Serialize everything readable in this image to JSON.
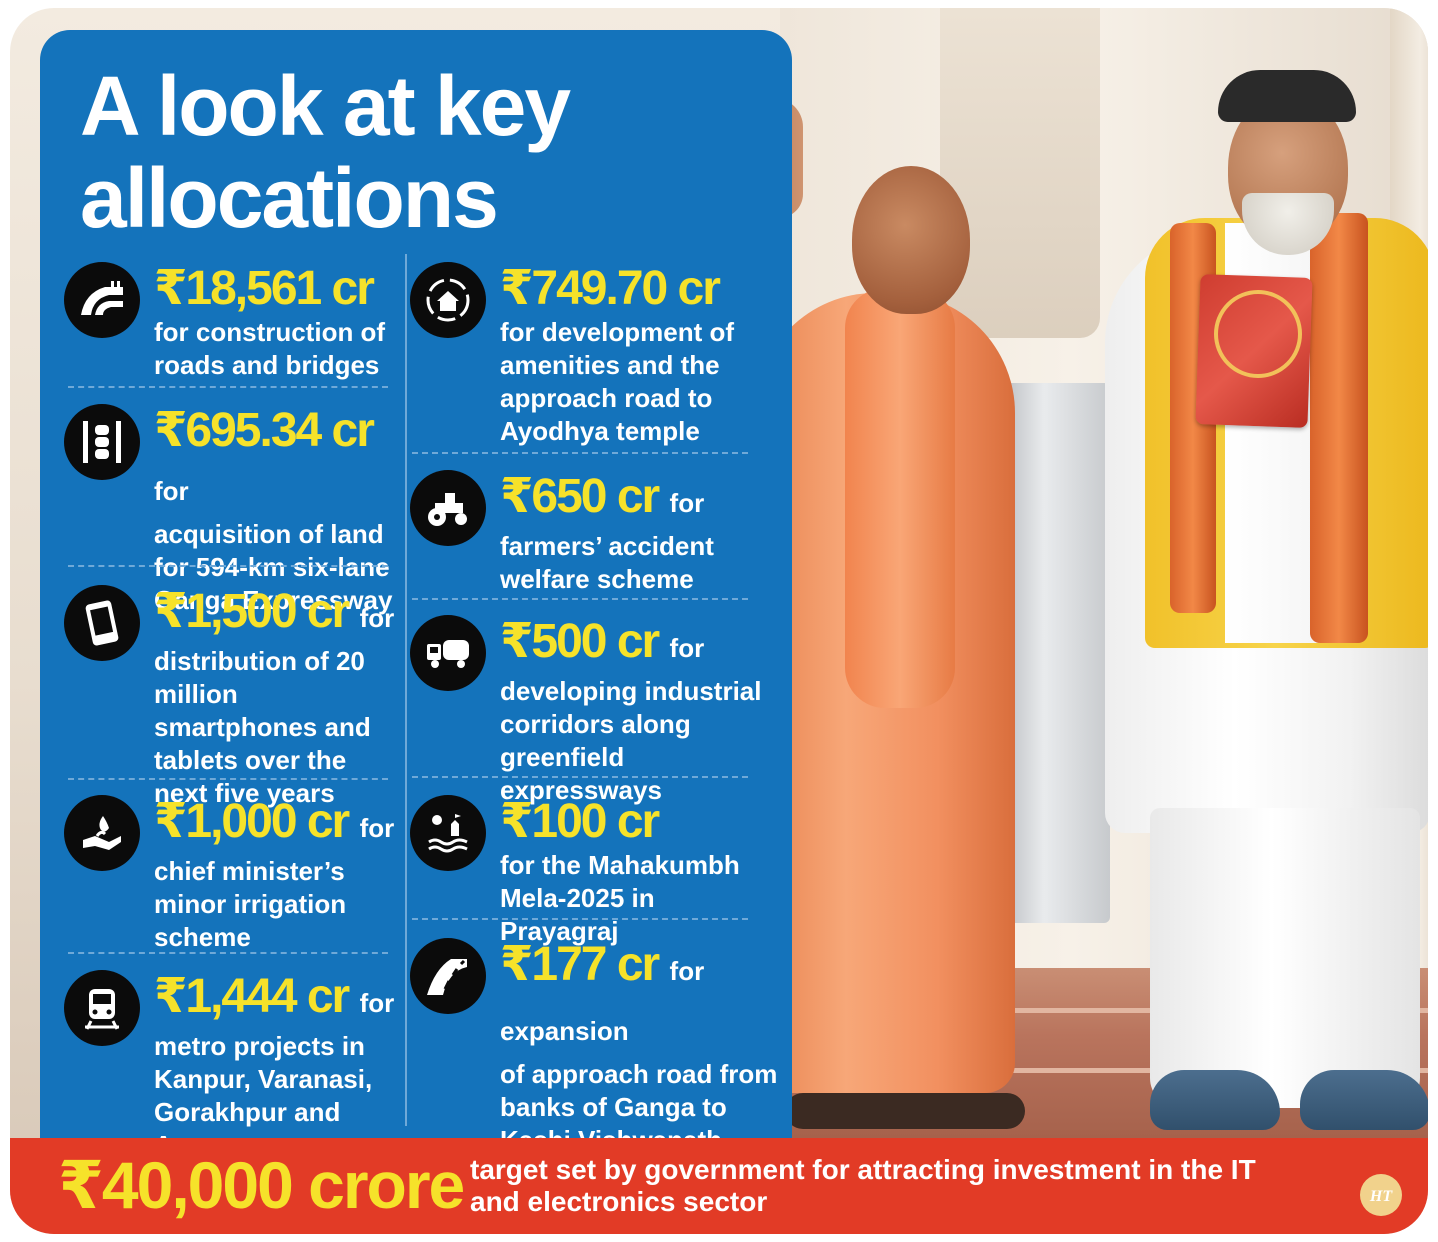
{
  "title": {
    "line1": "A look at key",
    "line2": "allocations"
  },
  "items_left": [
    {
      "amount": "₹18,561 cr",
      "inline": "",
      "desc": "for construction of roads and bridges",
      "icon": "road-bridge-icon"
    },
    {
      "amount": "₹695.34 cr",
      "inline": "for",
      "desc": "acquisition of land for 594-km six-lane Ganga Expressway",
      "icon": "expressway-icon"
    },
    {
      "amount": "₹1,500 cr",
      "inline": "for",
      "desc": "distribution of 20 million smartphones and tablets over the next five years",
      "icon": "smartphone-icon"
    },
    {
      "amount": "₹1,000 cr",
      "inline": "for",
      "desc": "chief minister’s minor irrigation scheme",
      "icon": "irrigation-icon"
    },
    {
      "amount": "₹1,444 cr",
      "inline": "for",
      "desc": "metro projects in Kanpur, Varanasi, Gorakhpur and Agra",
      "icon": "metro-train-icon"
    }
  ],
  "items_right": [
    {
      "amount": "₹749.70 cr",
      "inline": "",
      "desc": "for development of amenities and the approach road to Ayodhya temple",
      "icon": "home-development-icon"
    },
    {
      "amount": "₹650 cr",
      "inline": "for",
      "desc": "farmers’ accident welfare scheme",
      "icon": "tractor-icon"
    },
    {
      "amount": "₹500 cr",
      "inline": "for",
      "desc": "developing industrial corridors along greenfield expressways",
      "icon": "truck-icon"
    },
    {
      "amount": "₹100 cr",
      "inline": "",
      "desc": "for the Mahakumbh Mela-2025 in Prayagraj",
      "icon": "temple-river-icon"
    },
    {
      "amount": "₹177 cr",
      "inline": "for expansion",
      "desc": "of approach road from banks of Ganga to Kashi Vishwanath Dham in Varanasi",
      "icon": "road-icon"
    }
  ],
  "banner": {
    "amount": "₹40,000 crore",
    "text": "target set by government for attracting investment in the IT and electronics sector",
    "logo": "HT"
  },
  "colors": {
    "panel_blue": "#1473bb",
    "amount_yellow": "#f6e22a",
    "banner_red": "#e23b26"
  }
}
